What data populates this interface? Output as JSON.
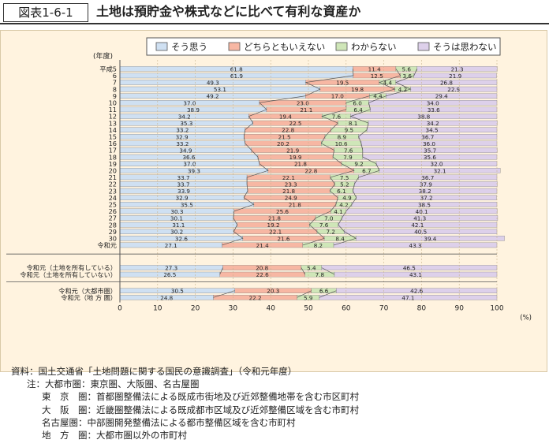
{
  "figure": {
    "label": "図表1-6-1",
    "title": "土地は預貯金や株式などに比べて有利な資産か"
  },
  "chart_data": {
    "type": "bar",
    "stacked": "horizontal-100",
    "ylabel": "(年度)",
    "xlabel": "(%)",
    "xlim": [
      0,
      100
    ],
    "xticks": [
      0,
      10,
      20,
      30,
      40,
      50,
      60,
      70,
      80,
      90,
      100
    ],
    "grid": true,
    "legend_position": "top",
    "legend": [
      "そう思う",
      "どちらともいえない",
      "わからない",
      "そうは思わない"
    ],
    "colors": [
      "#cfe0f2",
      "#f7b7a3",
      "#cfe6b8",
      "#ddd0ea"
    ],
    "categories": [
      "平成5",
      "6",
      "7",
      "8",
      "9",
      "10",
      "11",
      "12",
      "13",
      "14",
      "15",
      "16",
      "17",
      "18",
      "19",
      "20",
      "21",
      "22",
      "23",
      "24",
      "25",
      "26",
      "27",
      "28",
      "29",
      "30",
      "令和元",
      "令和元（土地を所有している）",
      "令和元（土地を所有していない）",
      "令和元（大都市圏）",
      "令和元（地 方 圏）"
    ],
    "groups": [
      27,
      2,
      2
    ],
    "series": [
      {
        "name": "そう思う",
        "values": [
          61.8,
          61.9,
          49.3,
          53.1,
          49.2,
          37.0,
          38.9,
          34.2,
          35.3,
          33.2,
          32.9,
          33.2,
          34.9,
          36.6,
          37.0,
          39.3,
          33.7,
          33.7,
          33.9,
          32.9,
          35.5,
          30.3,
          30.1,
          31.1,
          30.2,
          32.6,
          27.1,
          27.3,
          26.5,
          30.5,
          24.8
        ]
      },
      {
        "name": "どちらともいえない",
        "values": [
          11.4,
          12.5,
          19.5,
          19.8,
          17.0,
          23.0,
          21.1,
          19.4,
          22.5,
          22.8,
          21.5,
          20.2,
          21.9,
          19.9,
          21.8,
          22.8,
          22.1,
          23.3,
          21.8,
          24.9,
          21.8,
          25.6,
          21.8,
          19.2,
          22.1,
          21.6,
          21.4,
          20.8,
          22.6,
          20.3,
          22.2
        ]
      },
      {
        "name": "わからない",
        "values": [
          5.6,
          3.6,
          4.4,
          4.2,
          4.4,
          6.0,
          6.4,
          7.6,
          8.1,
          9.5,
          8.9,
          10.6,
          7.6,
          7.9,
          9.2,
          6.7,
          7.5,
          5.2,
          6.1,
          4.9,
          4.2,
          4.1,
          7.0,
          7.6,
          7.2,
          8.4,
          8.2,
          5.4,
          7.8,
          6.6,
          5.9
        ]
      },
      {
        "name": "そうは思わない",
        "values": [
          21.3,
          21.9,
          26.8,
          22.9,
          29.4,
          34.0,
          33.6,
          38.8,
          34.2,
          34.5,
          36.7,
          36.0,
          35.7,
          35.6,
          32.0,
          32.1,
          36.7,
          37.9,
          38.2,
          37.2,
          38.5,
          40.1,
          41.3,
          42.1,
          40.5,
          39.4,
          43.3,
          46.5,
          43.1,
          42.6,
          47.1
        ]
      }
    ]
  },
  "notes": [
    {
      "key": "資料：",
      "text": "国土交通省「土地問題に関する国民の意識調査」（令和元年度）"
    },
    {
      "key": "注：",
      "text": "大都市圏：東京圏、大阪圏、名古屋圏"
    },
    {
      "key": "",
      "text": "東　京　圏：首都圏整備法による既成市街地及び近郊整備地帯を含む市区町村"
    },
    {
      "key": "",
      "text": "大　阪　圏：近畿圏整備法による既成都市区域及び近郊整備区域を含む市町村"
    },
    {
      "key": "",
      "text": "名古屋圏：中部圏開発整備法による都市整備区域を含む市町村"
    },
    {
      "key": "",
      "text": "地　方　圏：大都市圏以外の市町村"
    }
  ]
}
